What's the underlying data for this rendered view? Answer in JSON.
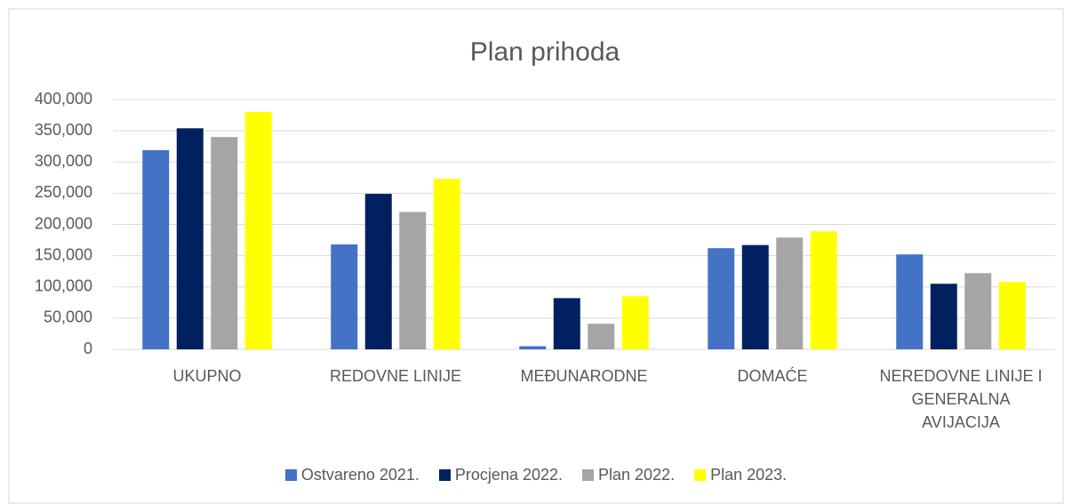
{
  "chart_data": {
    "type": "bar",
    "title": "Plan prihoda",
    "categories": [
      "UKUPNO",
      "REDOVNE LINIJE",
      "MEĐUNARODNE",
      "DOMAĆE",
      "NEREDOVNE LINIJE I GENERALNA AVIJACIJA"
    ],
    "series": [
      {
        "name": "Ostvareno 2021.",
        "color": "#4472c4",
        "values": [
          319000,
          168000,
          5000,
          162000,
          152000
        ]
      },
      {
        "name": "Procjena 2022.",
        "color": "#002060",
        "values": [
          354000,
          249000,
          82000,
          167000,
          105000
        ]
      },
      {
        "name": "Plan 2022.",
        "color": "#a5a5a5",
        "values": [
          340000,
          220000,
          41000,
          179000,
          122000
        ]
      },
      {
        "name": "Plan 2023.",
        "color": "#ffff00",
        "values": [
          380000,
          273000,
          85000,
          189000,
          108000
        ]
      }
    ],
    "ylim": [
      0,
      400000
    ],
    "yticks": [
      0,
      {
        "value": 50000,
        "label": "50,000"
      },
      {
        "value": 100000,
        "label": "100,000"
      },
      {
        "value": 150000,
        "label": "150,000"
      },
      {
        "value": 200000,
        "label": "200,000"
      },
      {
        "value": 250000,
        "label": "250,000"
      },
      {
        "value": 300000,
        "label": "300,000"
      },
      {
        "value": 350000,
        "label": "350,000"
      },
      {
        "value": 400000,
        "label": "400,000"
      }
    ],
    "grid": true,
    "legend": "bottom"
  }
}
